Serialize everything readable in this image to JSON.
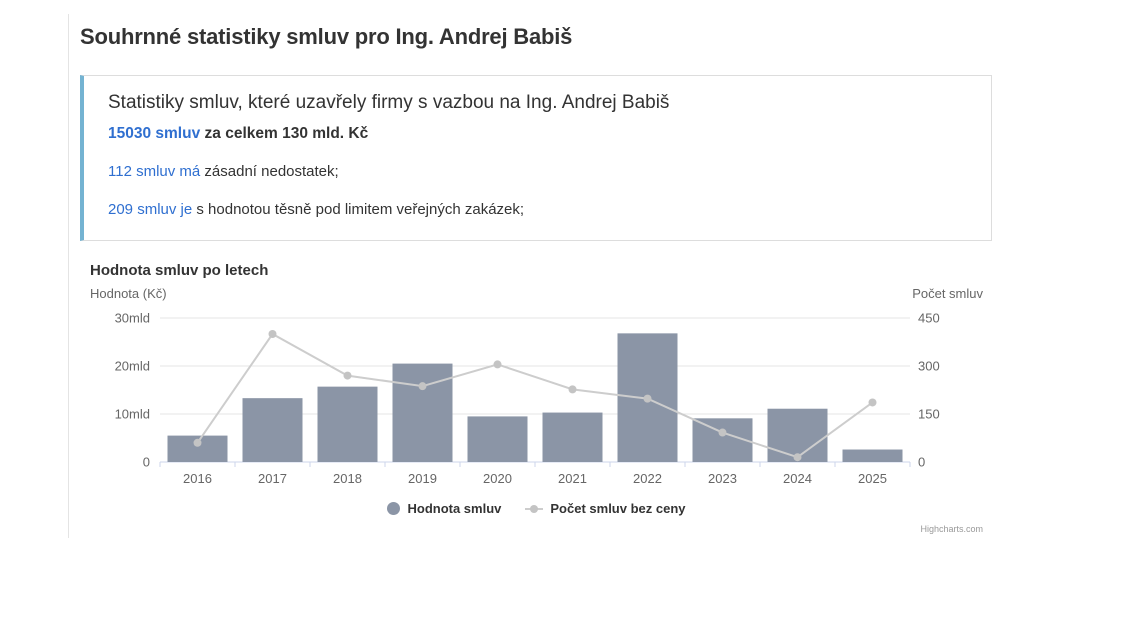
{
  "page": {
    "title": "Souhrnné statistiky smluv pro Ing. Andrej Babiš"
  },
  "summary_box": {
    "heading": "Statistiky smluv, které uzavřely firmy s vazbou na Ing. Andrej Babiš",
    "accent_color": "#74b3d2",
    "link_color": "#2f6fd0",
    "total": {
      "link": "15030 smluv",
      "rest": " za celkem 130 mld. Kč"
    },
    "issues": {
      "link": "112 smluv má",
      "rest": " zásadní nedostatek;"
    },
    "near_limit": {
      "link": "209 smluv je",
      "rest": " s hodnotou těsně pod limitem veřejných zakázek;"
    }
  },
  "chart_data": {
    "type": "combo-bar-line",
    "title": "Hodnota smluv po letech",
    "categories": [
      "2016",
      "2017",
      "2018",
      "2019",
      "2020",
      "2021",
      "2022",
      "2023",
      "2024",
      "2025"
    ],
    "series": [
      {
        "name": "Hodnota smluv",
        "type": "bar",
        "yaxis": "left",
        "unit": "mld Kč",
        "color": "#8b95a6",
        "values": [
          5.5,
          13.3,
          15.7,
          20.5,
          9.5,
          10.3,
          26.8,
          9.1,
          11.1,
          2.6
        ]
      },
      {
        "name": "Počet smluv bez ceny",
        "type": "line",
        "yaxis": "right",
        "color": "#cdcdcd",
        "marker_color": "#c4c4c4",
        "values": [
          60,
          400,
          270,
          237,
          305,
          227,
          198,
          92,
          15,
          186
        ]
      }
    ],
    "yaxis_left": {
      "title": "Hodnota (Kč)",
      "min": 0,
      "max": 30,
      "tick_labels": [
        "0",
        "10mld",
        "20mld",
        "30mld"
      ]
    },
    "yaxis_right": {
      "title": "Počet smluv",
      "min": 0,
      "max": 450,
      "tick_labels": [
        "0",
        "150",
        "300",
        "450"
      ]
    },
    "grid": true,
    "grid_color": "#e6e6e6",
    "axis_line_color": "#ccd6eb",
    "legend_position": "bottom-center",
    "credits": "Highcharts.com"
  }
}
